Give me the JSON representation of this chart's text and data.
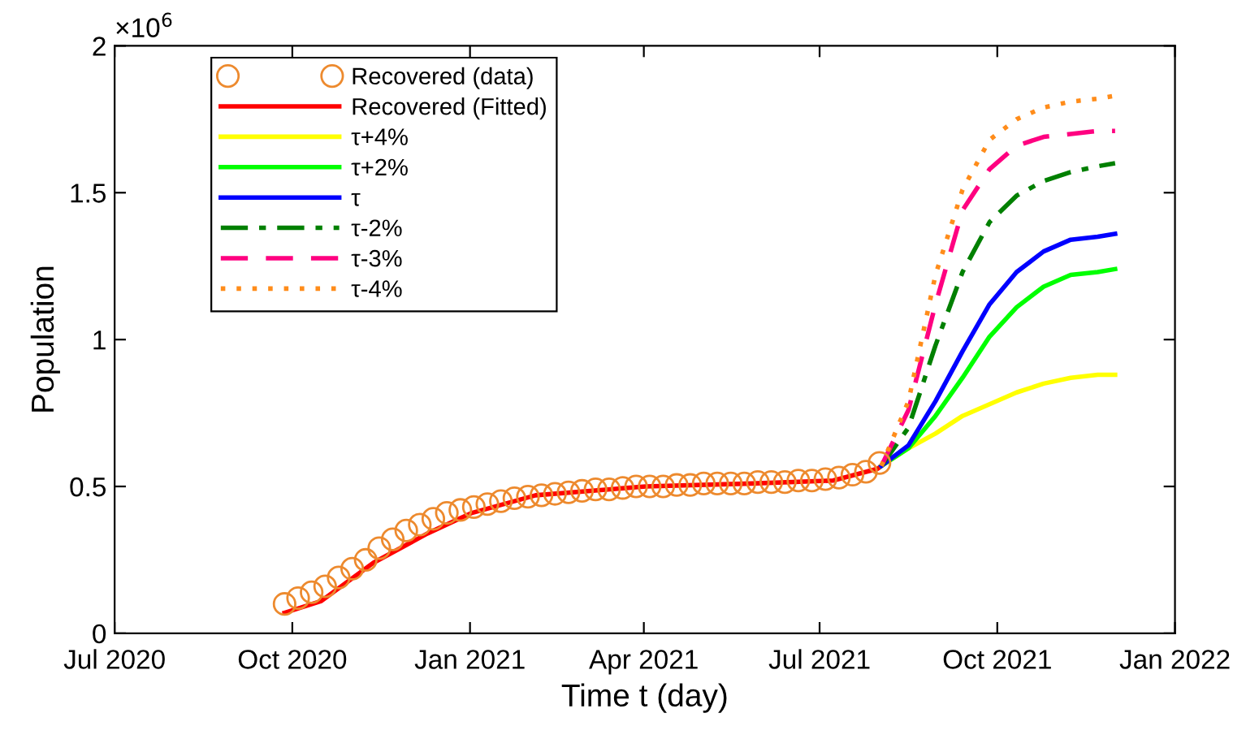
{
  "chart_data": {
    "type": "line",
    "xlabel": "Time t (day)",
    "ylabel": "Population",
    "annotations": [
      "×10$^{6}$"
    ],
    "xlim": [
      "2020-07-01",
      "2022-01-01"
    ],
    "xticks": [
      {
        "value": "2020-07-01",
        "label": "Jul 2020"
      },
      {
        "value": "2020-10-01",
        "label": "Oct 2020"
      },
      {
        "value": "2021-01-01",
        "label": "Jan 2021"
      },
      {
        "value": "2021-04-01",
        "label": "Apr 2021"
      },
      {
        "value": "2021-07-01",
        "label": "Jul 2021"
      },
      {
        "value": "2021-10-01",
        "label": "Oct 2021"
      },
      {
        "value": "2022-01-01",
        "label": "Jan 2022"
      }
    ],
    "ylim": [
      0,
      2
    ],
    "yticks": [
      0,
      0.5,
      1,
      1.5,
      2
    ],
    "grid": false,
    "legend": "top left",
    "series": [
      {
        "name": "Recovered (data)",
        "type": "scatter",
        "marker": "circle",
        "color": "#ed8a2e",
        "x": [
          "2020-09-27",
          "2020-10-04",
          "2020-10-11",
          "2020-10-18",
          "2020-10-25",
          "2020-11-01",
          "2020-11-08",
          "2020-11-15",
          "2020-11-22",
          "2020-11-29",
          "2020-12-06",
          "2020-12-13",
          "2020-12-20",
          "2020-12-27",
          "2021-01-03",
          "2021-01-10",
          "2021-01-17",
          "2021-01-24",
          "2021-01-31",
          "2021-02-07",
          "2021-02-14",
          "2021-02-21",
          "2021-02-28",
          "2021-03-07",
          "2021-03-14",
          "2021-03-21",
          "2021-03-28",
          "2021-04-04",
          "2021-04-11",
          "2021-04-18",
          "2021-04-25",
          "2021-05-02",
          "2021-05-09",
          "2021-05-16",
          "2021-05-23",
          "2021-05-30",
          "2021-06-06",
          "2021-06-13",
          "2021-06-20",
          "2021-06-27",
          "2021-07-04",
          "2021-07-11",
          "2021-07-18",
          "2021-07-25",
          "2021-08-01"
        ],
        "values": [
          0.1,
          0.12,
          0.14,
          0.16,
          0.19,
          0.22,
          0.25,
          0.29,
          0.32,
          0.35,
          0.37,
          0.39,
          0.41,
          0.42,
          0.43,
          0.44,
          0.45,
          0.46,
          0.465,
          0.47,
          0.475,
          0.48,
          0.485,
          0.49,
          0.49,
          0.495,
          0.5,
          0.5,
          0.5,
          0.505,
          0.505,
          0.51,
          0.51,
          0.51,
          0.51,
          0.515,
          0.515,
          0.515,
          0.52,
          0.52,
          0.525,
          0.53,
          0.54,
          0.55,
          0.58
        ]
      },
      {
        "name": "Recovered (Fitted)",
        "color": "#ff0000",
        "line_style": "solid",
        "x": [
          "2020-09-27",
          "2020-10-16",
          "2020-11-12",
          "2020-12-10",
          "2021-01-02",
          "2021-02-04",
          "2021-04-02",
          "2021-05-27",
          "2021-07-08",
          "2021-07-31",
          "2021-08-02"
        ],
        "values": [
          0.07,
          0.11,
          0.24,
          0.34,
          0.41,
          0.47,
          0.5,
          0.51,
          0.52,
          0.56,
          0.57
        ]
      },
      {
        "name": "τ+4%",
        "color": "#ffff00",
        "line_style": "solid",
        "x": [
          "2021-08-02",
          "2021-08-16",
          "2021-08-30",
          "2021-09-13",
          "2021-09-27",
          "2021-10-11",
          "2021-10-25",
          "2021-11-08",
          "2021-11-22",
          "2021-12-01"
        ],
        "values": [
          0.57,
          0.63,
          0.68,
          0.74,
          0.78,
          0.82,
          0.85,
          0.87,
          0.88,
          0.88
        ]
      },
      {
        "name": "τ+2%",
        "color": "#00ff00",
        "line_style": "solid",
        "x": [
          "2021-08-02",
          "2021-08-16",
          "2021-08-30",
          "2021-09-13",
          "2021-09-27",
          "2021-10-11",
          "2021-10-25",
          "2021-11-08",
          "2021-11-22",
          "2021-12-01"
        ],
        "values": [
          0.57,
          0.63,
          0.74,
          0.87,
          1.01,
          1.11,
          1.18,
          1.22,
          1.23,
          1.24
        ]
      },
      {
        "name": "τ",
        "color": "#0000ff",
        "line_style": "solid",
        "x": [
          "2021-08-02",
          "2021-08-16",
          "2021-08-30",
          "2021-09-13",
          "2021-09-27",
          "2021-10-11",
          "2021-10-25",
          "2021-11-08",
          "2021-11-22",
          "2021-12-01"
        ],
        "values": [
          0.57,
          0.64,
          0.79,
          0.96,
          1.12,
          1.23,
          1.3,
          1.34,
          1.35,
          1.36
        ]
      },
      {
        "name": "τ-2%",
        "color": "#008000",
        "line_style": "dashdot",
        "x": [
          "2021-08-02",
          "2021-08-16",
          "2021-08-30",
          "2021-09-13",
          "2021-09-27",
          "2021-10-11",
          "2021-10-25",
          "2021-11-08",
          "2021-11-22",
          "2021-12-01"
        ],
        "values": [
          0.57,
          0.7,
          0.98,
          1.23,
          1.4,
          1.49,
          1.54,
          1.57,
          1.59,
          1.6
        ]
      },
      {
        "name": "τ-3%",
        "color": "#ff0080",
        "line_style": "dashed",
        "x": [
          "2021-08-02",
          "2021-08-16",
          "2021-08-30",
          "2021-09-13",
          "2021-09-27",
          "2021-10-11",
          "2021-10-25",
          "2021-11-08",
          "2021-11-22",
          "2021-12-01"
        ],
        "values": [
          0.57,
          0.76,
          1.12,
          1.44,
          1.58,
          1.66,
          1.69,
          1.7,
          1.71,
          1.71
        ]
      },
      {
        "name": "τ-4%",
        "color": "#ff8c1a",
        "line_style": "dotted",
        "x": [
          "2021-08-02",
          "2021-08-16",
          "2021-08-30",
          "2021-09-13",
          "2021-09-27",
          "2021-10-11",
          "2021-10-25",
          "2021-11-08",
          "2021-11-22",
          "2021-12-01"
        ],
        "values": [
          0.57,
          0.79,
          1.22,
          1.51,
          1.68,
          1.75,
          1.79,
          1.81,
          1.82,
          1.83
        ]
      }
    ]
  }
}
